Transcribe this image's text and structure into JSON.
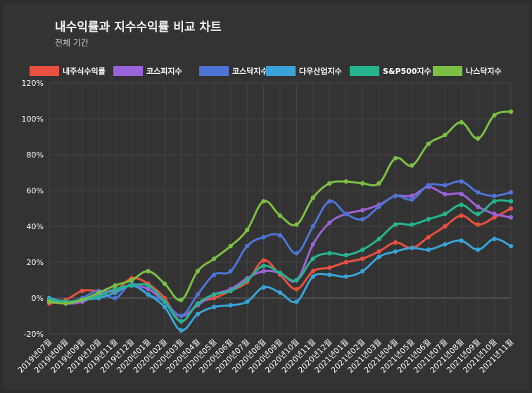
{
  "chart_data": {
    "type": "line",
    "title": "내수익률과 지수수익률 비교 차트",
    "subtitle": "전체 기간",
    "legend_position": "top",
    "grid": true,
    "ylim": [
      -20,
      120
    ],
    "y_ticks": [
      "-20%",
      "0%",
      "20%",
      "40%",
      "60%",
      "80%",
      "100%",
      "120%"
    ],
    "categories": [
      "2019년07월",
      "2019년08월",
      "2019년09월",
      "2019년10월",
      "2019년11월",
      "2019년12월",
      "2020년01월",
      "2020년02월",
      "2020년03월",
      "2020년04월",
      "2020년05월",
      "2020년06월",
      "2020년07월",
      "2020년08월",
      "2020년09월",
      "2020년10월",
      "2020년11월",
      "2020년12월",
      "2021년01월",
      "2021년02월",
      "2021년03월",
      "2021년04월",
      "2021년05월",
      "2021년06월",
      "2021년07월",
      "2021년08월",
      "2021년09월",
      "2021년10월",
      "2021년11월"
    ],
    "series": [
      {
        "name": "내주식수익률",
        "color": "#e8503f",
        "values": [
          -3,
          -1,
          4,
          4,
          4,
          11,
          8,
          0,
          -13,
          -3,
          0,
          4,
          9,
          21,
          13,
          5,
          15,
          17,
          20,
          22,
          26,
          31,
          28,
          34,
          40,
          46,
          41,
          45,
          50
        ]
      },
      {
        "name": "코스피지수",
        "color": "#9b63d9",
        "values": [
          0,
          -3,
          -2,
          2,
          5,
          7,
          5,
          -2,
          -10,
          -4,
          2,
          5,
          11,
          15,
          14,
          10,
          30,
          42,
          47,
          49,
          52,
          57,
          57,
          62,
          58,
          58,
          51,
          47,
          45
        ]
      },
      {
        "name": "코스닥지수",
        "color": "#4e74d6",
        "values": [
          0,
          -3,
          0,
          4,
          0,
          8,
          2,
          -2,
          -10,
          2,
          13,
          15,
          29,
          34,
          35,
          25,
          40,
          54,
          47,
          44,
          51,
          57,
          55,
          63,
          63,
          65,
          59,
          57,
          59
        ]
      },
      {
        "name": "다우산업지수",
        "color": "#3aa2d8",
        "values": [
          0,
          -2,
          -1,
          0,
          3,
          7,
          2,
          -5,
          -18,
          -9,
          -5,
          -4,
          -2,
          6,
          3,
          -2,
          12,
          13,
          12,
          15,
          23,
          26,
          28,
          27,
          30,
          32,
          27,
          33,
          29
        ]
      },
      {
        "name": "S&P500지수",
        "color": "#26b48e",
        "values": [
          -1,
          -2,
          -1,
          1,
          5,
          7,
          7,
          -2,
          -13,
          -3,
          2,
          4,
          10,
          18,
          14,
          10,
          22,
          25,
          24,
          27,
          33,
          41,
          41,
          44,
          47,
          52,
          47,
          54,
          54
        ]
      },
      {
        "name": "나스닥지수",
        "color": "#7cc043",
        "values": [
          -2,
          -3,
          -1,
          3,
          7,
          10,
          15,
          8,
          -1,
          15,
          22,
          29,
          38,
          54,
          46,
          41,
          56,
          64,
          65,
          64,
          64,
          78,
          74,
          86,
          91,
          98,
          89,
          102,
          104
        ]
      }
    ]
  }
}
